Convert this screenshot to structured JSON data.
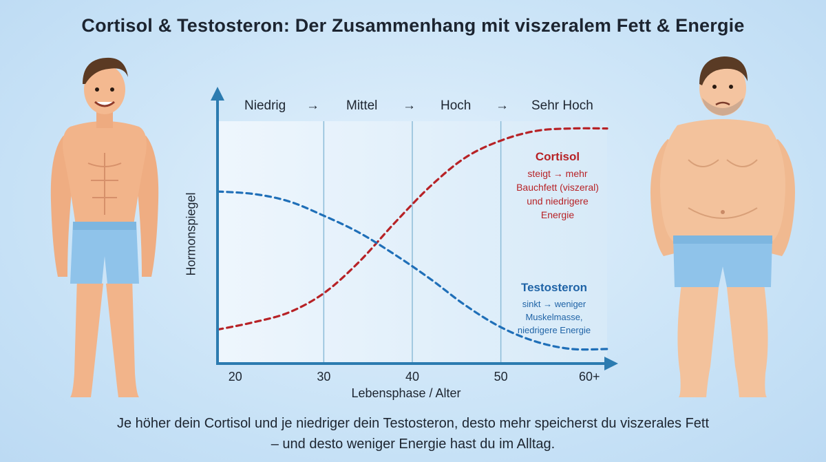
{
  "title": "Cortisol & Testosteron: Der Zusammenhang mit viszeralem Fett & Energie",
  "phases": [
    "Niedrig",
    "→",
    "Mittel",
    "→",
    "Hoch",
    "→",
    "Sehr Hoch"
  ],
  "footer": {
    "line1": "Je höher dein Cortisol und je niedriger dein Testosteron, desto mehr speicherst du viszerales Fett",
    "line2": "– und desto weniger Energie hast du im Alltag."
  },
  "figures": {
    "left": "lean-muscular-man-smiling",
    "right": "overweight-tired-man"
  },
  "annotations": {
    "cortisol": {
      "heading": "Cortisol",
      "lines": [
        "steigt → mehr",
        "Bauchfett (viszeral)",
        "und niedrigere",
        "Energie"
      ]
    },
    "testosteron": {
      "heading": "Testosteron",
      "lines": [
        "sinkt → weniger",
        "Muskelmasse,",
        "niedrigere Energie"
      ]
    }
  },
  "chart_data": {
    "type": "line",
    "xlabel": "Lebensphase / Alter",
    "ylabel": "Hormonspiegel",
    "x_ticks": [
      "20",
      "30",
      "40",
      "50",
      "60+"
    ],
    "x_tick_values": [
      20,
      30,
      40,
      50,
      60
    ],
    "xlim": [
      18,
      62
    ],
    "ylim": [
      0,
      1
    ],
    "grid": {
      "vertical_at": [
        30,
        40,
        50
      ]
    },
    "colors": {
      "cortisol": "#b72226",
      "testosteron": "#1f6fb8",
      "axis": "#2c7bb0"
    },
    "series": [
      {
        "name": "Cortisol",
        "x": [
          18,
          22,
          26,
          30,
          34,
          38,
          42,
          46,
          50,
          54,
          58,
          62
        ],
        "y": [
          0.14,
          0.17,
          0.21,
          0.29,
          0.42,
          0.58,
          0.73,
          0.85,
          0.92,
          0.96,
          0.97,
          0.97
        ]
      },
      {
        "name": "Testosteron",
        "x": [
          18,
          22,
          26,
          30,
          34,
          38,
          42,
          46,
          50,
          54,
          58,
          62
        ],
        "y": [
          0.71,
          0.7,
          0.67,
          0.61,
          0.54,
          0.45,
          0.35,
          0.24,
          0.15,
          0.09,
          0.06,
          0.06
        ]
      }
    ]
  }
}
